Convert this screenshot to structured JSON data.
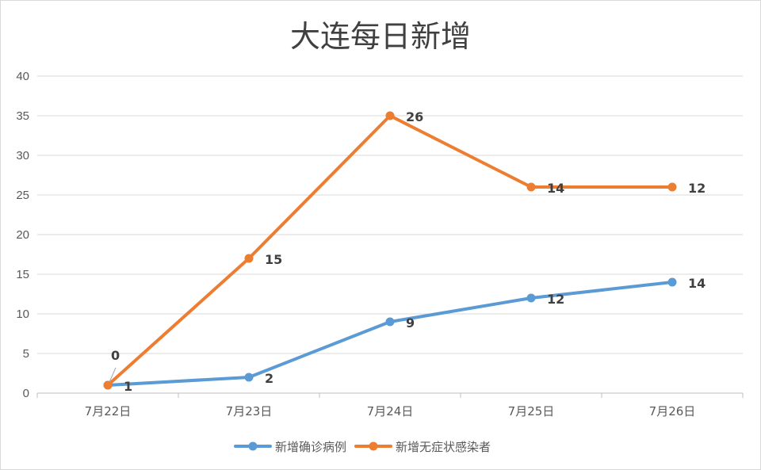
{
  "chart_data": {
    "type": "line",
    "title": "大连每日新增",
    "categories": [
      "7月22日",
      "7月23日",
      "7月24日",
      "7月25日",
      "7月26日"
    ],
    "ylim": [
      0,
      40
    ],
    "yticks": [
      0,
      5,
      10,
      15,
      20,
      25,
      30,
      35,
      40
    ],
    "grid": true,
    "legend_position": "bottom",
    "series": [
      {
        "name": "新增确诊病例",
        "values": [
          1,
          2,
          9,
          12,
          14
        ],
        "labels": [
          "1",
          "2",
          "9",
          "12",
          "14"
        ],
        "color": "#5b9bd5"
      },
      {
        "name": "新增无症状感染者",
        "values": [
          1,
          17,
          35,
          26,
          26
        ],
        "labels": [
          "0",
          "15",
          "26",
          "14",
          "12"
        ],
        "color": "#ed7d31"
      }
    ]
  }
}
